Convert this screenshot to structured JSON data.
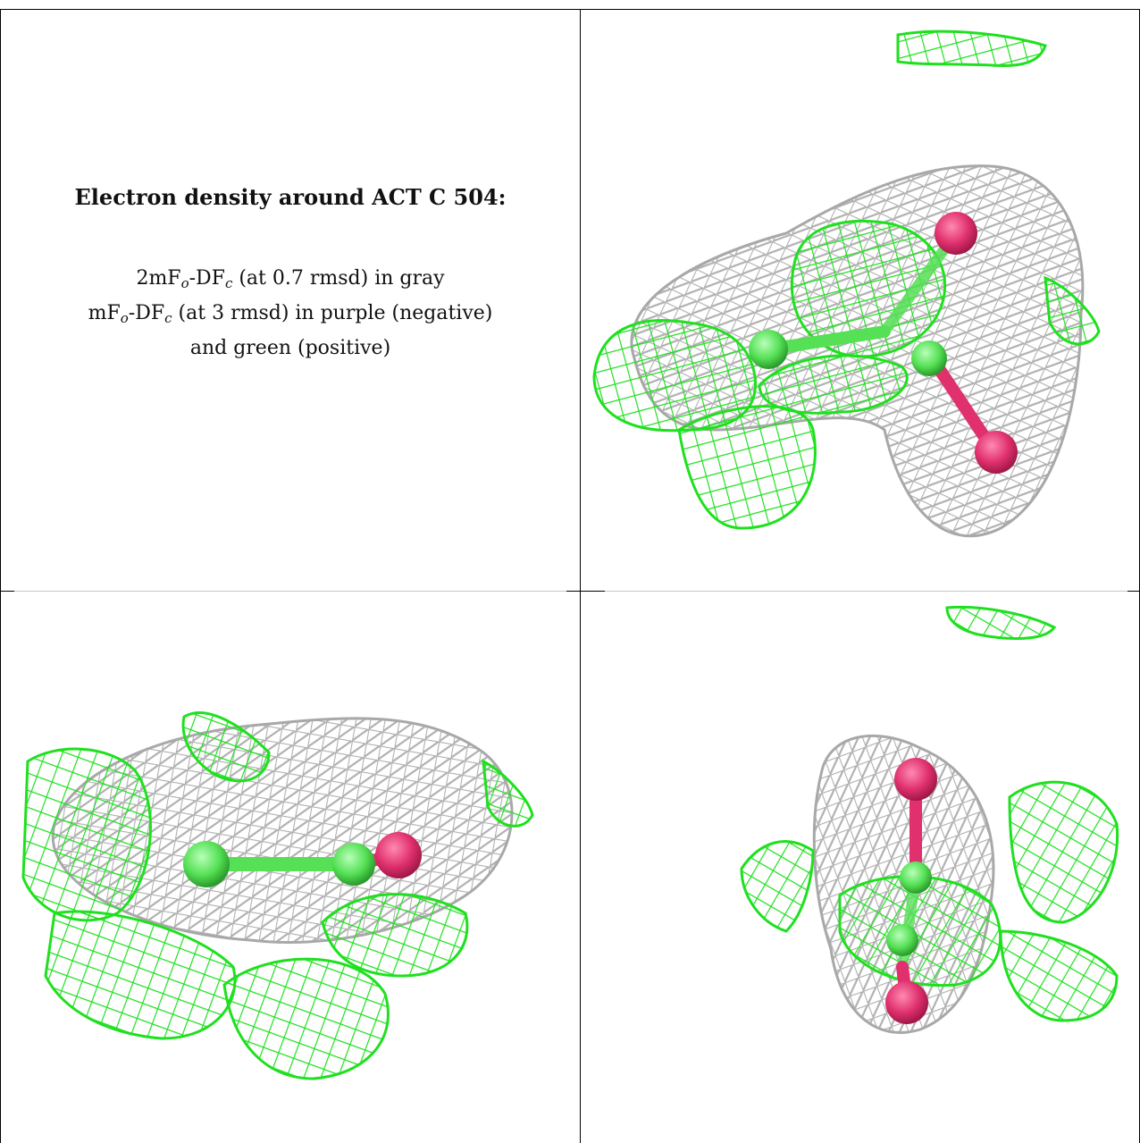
{
  "title": "Electron density around ACT C 504:",
  "legend": {
    "line1_a": "2mF",
    "line1_sub1": "o",
    "line1_b": "-DF",
    "line1_sub2": "c",
    "line1_c": " (at 0.7 rmsd) in gray",
    "line2_a": "mF",
    "line2_sub1": "o",
    "line2_b": "-DF",
    "line2_sub2": "c",
    "line2_c": " (at 3 rmsd) in purple (negative)",
    "line3": "and green (positive)"
  },
  "colors": {
    "gray_mesh": "#b4b4b4",
    "green_mesh": "#1fe01f",
    "oxygen": "#e0306e",
    "carbon": "#55e055"
  }
}
